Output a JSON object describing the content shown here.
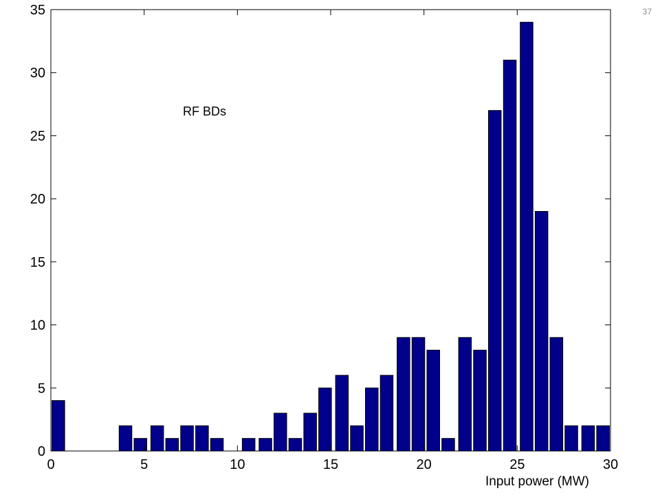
{
  "slide": {
    "page_number": "37"
  },
  "chart_data": {
    "type": "bar",
    "xlim": [
      0,
      30
    ],
    "ylim": [
      0,
      35
    ],
    "xticks": [
      0,
      5,
      10,
      15,
      20,
      25,
      30
    ],
    "yticks": [
      0,
      5,
      10,
      15,
      20,
      25,
      30,
      35
    ],
    "x": [
      0.4,
      4.0,
      4.8,
      5.7,
      6.5,
      7.3,
      8.1,
      8.9,
      10.6,
      11.5,
      12.3,
      13.1,
      13.9,
      14.7,
      15.6,
      16.4,
      17.2,
      18.0,
      18.9,
      19.7,
      20.5,
      21.3,
      22.2,
      23.0,
      23.8,
      24.6,
      25.5,
      26.3,
      27.1,
      27.9,
      28.8,
      29.6
    ],
    "values": [
      4,
      2,
      1,
      2,
      1,
      2,
      2,
      1,
      1,
      1,
      3,
      1,
      3,
      5,
      6,
      2,
      5,
      6,
      9,
      9,
      8,
      1,
      9,
      8,
      27,
      31,
      34,
      19,
      9,
      2,
      2,
      2
    ],
    "bar_color": "#00008b",
    "xlabel": "Input power (MW)",
    "ylabel": "",
    "title": "",
    "annotations": [
      "RF BDs"
    ],
    "grid": false
  }
}
